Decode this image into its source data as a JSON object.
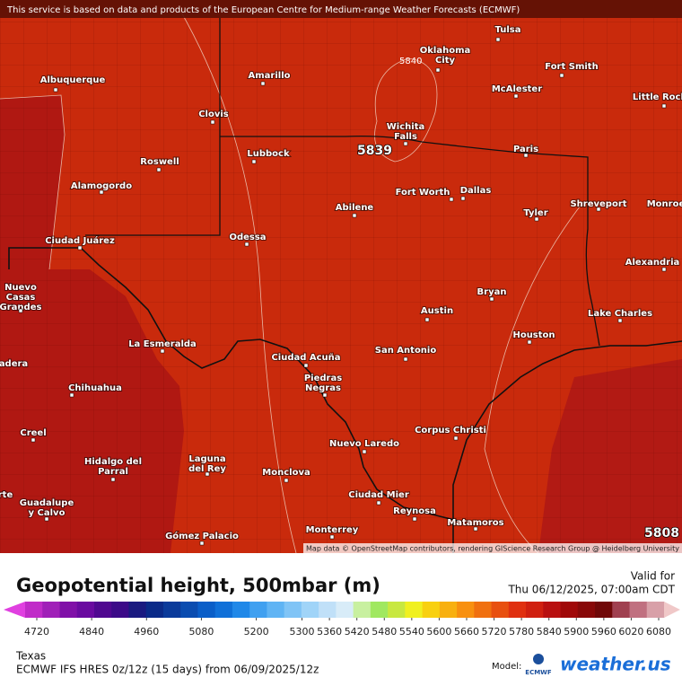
{
  "banner": "This service is based on data and products of the European Centre for Medium-range Weather Forecasts (ECMWF)",
  "attribution": "Map data © OpenStreetMap contributors, rendering GIScience Research Group @ Heidelberg University",
  "contour_labels": [
    "5840",
    "5839",
    "5808"
  ],
  "cities": [
    {
      "lines": [
        "Tulsa"
      ]
    },
    {
      "lines": [
        "Oklahoma",
        "City"
      ]
    },
    {
      "lines": [
        "Amarillo"
      ]
    },
    {
      "lines": [
        "Albuquerque"
      ]
    },
    {
      "lines": [
        "Fort Smith"
      ]
    },
    {
      "lines": [
        "McAlester"
      ]
    },
    {
      "lines": [
        "Little Rock"
      ]
    },
    {
      "lines": [
        "Clovis"
      ]
    },
    {
      "lines": [
        "Wichita",
        "Falls"
      ]
    },
    {
      "lines": [
        "Lubbock"
      ]
    },
    {
      "lines": [
        "Paris"
      ]
    },
    {
      "lines": [
        "Roswell"
      ]
    },
    {
      "lines": [
        "Alamogordo"
      ]
    },
    {
      "lines": [
        "Fort Worth"
      ]
    },
    {
      "lines": [
        "Dallas"
      ]
    },
    {
      "lines": [
        "Shreveport"
      ]
    },
    {
      "lines": [
        "Monroe"
      ]
    },
    {
      "lines": [
        "Tyler"
      ]
    },
    {
      "lines": [
        "Abilene"
      ]
    },
    {
      "lines": [
        "Odessa"
      ]
    },
    {
      "lines": [
        "Ciudad Juárez"
      ]
    },
    {
      "lines": [
        "Alexandria"
      ]
    },
    {
      "lines": [
        "Bryan"
      ]
    },
    {
      "lines": [
        "Nuevo",
        "Casas",
        "Grandes"
      ]
    },
    {
      "lines": [
        "Austin"
      ]
    },
    {
      "lines": [
        "Lake Charles"
      ]
    },
    {
      "lines": [
        "Houston"
      ]
    },
    {
      "lines": [
        "La Esmeralda"
      ]
    },
    {
      "lines": [
        "San Antonio"
      ]
    },
    {
      "lines": [
        "Ciudad Acuña"
      ]
    },
    {
      "lines": [
        "Piedras",
        "Negras"
      ]
    },
    {
      "lines": [
        "Chihuahua"
      ]
    },
    {
      "lines": [
        "Corpus Christi"
      ]
    },
    {
      "lines": [
        "Creel"
      ]
    },
    {
      "lines": [
        "Nuevo Laredo"
      ]
    },
    {
      "lines": [
        "Hidalgo del",
        "Parral"
      ]
    },
    {
      "lines": [
        "Laguna",
        "del Rey"
      ]
    },
    {
      "lines": [
        "Monclova"
      ]
    },
    {
      "lines": [
        "Ciudad Mier"
      ]
    },
    {
      "lines": [
        "Guadalupe",
        "y Calvo"
      ]
    },
    {
      "lines": [
        "Reynosa"
      ]
    },
    {
      "lines": [
        "Matamoros"
      ]
    },
    {
      "lines": [
        "Monterrey"
      ]
    },
    {
      "lines": [
        "Gómez Palacio"
      ]
    },
    {
      "lines": [
        "adera"
      ]
    },
    {
      "lines": [
        "rte"
      ]
    }
  ],
  "legend": {
    "title": "Geopotential height, 500mbar (m)",
    "ticks": [
      4720,
      4840,
      4960,
      5080,
      5200,
      5300,
      5360,
      5420,
      5480,
      5540,
      5600,
      5660,
      5720,
      5780,
      5840,
      5900,
      5960,
      6020,
      6080
    ],
    "colors": [
      "#e040e0",
      "#c02cc8",
      "#a020b8",
      "#8010a8",
      "#6a0aa0",
      "#500890",
      "#3c0a88",
      "#1a1a80",
      "#0a2a88",
      "#0a3a9a",
      "#0a4cb0",
      "#0a5ec8",
      "#1070d8",
      "#2088e8",
      "#40a0f0",
      "#60b4f4",
      "#80c4f6",
      "#a0d4f8",
      "#c0e0f8",
      "#d8ecf8",
      "#c8f0a0",
      "#a0e860",
      "#c8e840",
      "#f0f020",
      "#f8d010",
      "#f8b010",
      "#f89010",
      "#f07010",
      "#e85010",
      "#e03010",
      "#d02010",
      "#b81010",
      "#a00808",
      "#880808",
      "#700808",
      "#a04050",
      "#c07080",
      "#d8a0a8",
      "#f0c8c8"
    ]
  },
  "valid_label": "Valid for",
  "valid_time": "Thu 06/12/2025, 07:00am CDT",
  "region": "Texas",
  "model_run": "ECMWF IFS HRES 0z/12z (15 days) from  06/09/2025/12z",
  "model_label": "Model:",
  "model_logo": "ECMWF",
  "brand": "weather.us"
}
